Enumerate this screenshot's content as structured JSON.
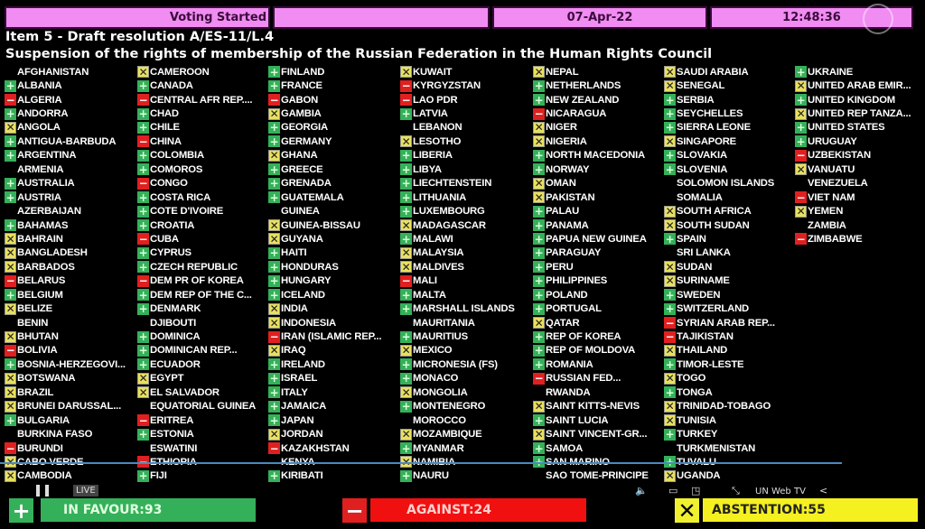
{
  "header": {
    "status": "Voting Started",
    "blank": "",
    "date": "07-Apr-22",
    "time": "12:48:36"
  },
  "item_title": "Item 5 - Draft resolution A/ES-11/L.4",
  "subtitle": "Suspension of the rights of membership of the Russian Federation in the Human Rights Council",
  "colors": {
    "yes": "#35b05a",
    "no": "#e02020",
    "abstain": "#e8e060",
    "header": "#f08cf2"
  },
  "columns": [
    [
      [
        "AFGHANISTAN",
        ""
      ],
      [
        "ALBANIA",
        "yes"
      ],
      [
        "ALGERIA",
        "no"
      ],
      [
        "ANDORRA",
        "yes"
      ],
      [
        "ANGOLA",
        "abstain"
      ],
      [
        "ANTIGUA-BARBUDA",
        "yes"
      ],
      [
        "ARGENTINA",
        "yes"
      ],
      [
        "ARMENIA",
        ""
      ],
      [
        "AUSTRALIA",
        "yes"
      ],
      [
        "AUSTRIA",
        "yes"
      ],
      [
        "AZERBAIJAN",
        ""
      ],
      [
        "BAHAMAS",
        "yes"
      ],
      [
        "BAHRAIN",
        "abstain"
      ],
      [
        "BANGLADESH",
        "abstain"
      ],
      [
        "BARBADOS",
        "abstain"
      ],
      [
        "BELARUS",
        "no"
      ],
      [
        "BELGIUM",
        "yes"
      ],
      [
        "BELIZE",
        "abstain"
      ],
      [
        "BENIN",
        ""
      ],
      [
        "BHUTAN",
        "abstain"
      ],
      [
        "BOLIVIA",
        "no"
      ],
      [
        "BOSNIA-HERZEGOVI...",
        "yes"
      ],
      [
        "BOTSWANA",
        "abstain"
      ],
      [
        "BRAZIL",
        "abstain"
      ],
      [
        "BRUNEI DARUSSAL...",
        "abstain"
      ],
      [
        "BULGARIA",
        "yes"
      ],
      [
        "BURKINA FASO",
        ""
      ],
      [
        "BURUNDI",
        "no"
      ],
      [
        "CABO VERDE",
        "abstain"
      ],
      [
        "CAMBODIA",
        "abstain"
      ]
    ],
    [
      [
        "CAMEROON",
        "abstain"
      ],
      [
        "CANADA",
        "yes"
      ],
      [
        "CENTRAL AFR REP....",
        "no"
      ],
      [
        "CHAD",
        "yes"
      ],
      [
        "CHILE",
        "yes"
      ],
      [
        "CHINA",
        "no"
      ],
      [
        "COLOMBIA",
        "yes"
      ],
      [
        "COMOROS",
        "yes"
      ],
      [
        "CONGO",
        "no"
      ],
      [
        "COSTA RICA",
        "yes"
      ],
      [
        "COTE D'IVOIRE",
        "yes"
      ],
      [
        "CROATIA",
        "yes"
      ],
      [
        "CUBA",
        "no"
      ],
      [
        "CYPRUS",
        "yes"
      ],
      [
        "CZECH REPUBLIC",
        "yes"
      ],
      [
        "DEM PR OF KOREA",
        "no"
      ],
      [
        "DEM REP OF THE C...",
        "yes"
      ],
      [
        "DENMARK",
        "yes"
      ],
      [
        "DJIBOUTI",
        ""
      ],
      [
        "DOMINICA",
        "yes"
      ],
      [
        "DOMINICAN REP...",
        "yes"
      ],
      [
        "ECUADOR",
        "yes"
      ],
      [
        "EGYPT",
        "abstain"
      ],
      [
        "EL SALVADOR",
        "abstain"
      ],
      [
        "EQUATORIAL GUINEA",
        ""
      ],
      [
        "ERITREA",
        "no"
      ],
      [
        "ESTONIA",
        "yes"
      ],
      [
        "ESWATINI",
        ""
      ],
      [
        "ETHIOPIA",
        "no"
      ],
      [
        "FIJI",
        "yes"
      ]
    ],
    [
      [
        "FINLAND",
        "yes"
      ],
      [
        "FRANCE",
        "yes"
      ],
      [
        "GABON",
        "no"
      ],
      [
        "GAMBIA",
        "abstain"
      ],
      [
        "GEORGIA",
        "yes"
      ],
      [
        "GERMANY",
        "yes"
      ],
      [
        "GHANA",
        "abstain"
      ],
      [
        "GREECE",
        "yes"
      ],
      [
        "GRENADA",
        "yes"
      ],
      [
        "GUATEMALA",
        "yes"
      ],
      [
        "GUINEA",
        ""
      ],
      [
        "GUINEA-BISSAU",
        "abstain"
      ],
      [
        "GUYANA",
        "abstain"
      ],
      [
        "HAITI",
        "yes"
      ],
      [
        "HONDURAS",
        "yes"
      ],
      [
        "HUNGARY",
        "yes"
      ],
      [
        "ICELAND",
        "yes"
      ],
      [
        "INDIA",
        "abstain"
      ],
      [
        "INDONESIA",
        "abstain"
      ],
      [
        "IRAN (ISLAMIC REP...",
        "no"
      ],
      [
        "IRAQ",
        "abstain"
      ],
      [
        "IRELAND",
        "yes"
      ],
      [
        "ISRAEL",
        "yes"
      ],
      [
        "ITALY",
        "yes"
      ],
      [
        "JAMAICA",
        "yes"
      ],
      [
        "JAPAN",
        "yes"
      ],
      [
        "JORDAN",
        "abstain"
      ],
      [
        "KAZAKHSTAN",
        "no"
      ],
      [
        "KENYA",
        ""
      ],
      [
        "KIRIBATI",
        "yes"
      ]
    ],
    [
      [
        "KUWAIT",
        "abstain"
      ],
      [
        "KYRGYZSTAN",
        "no"
      ],
      [
        "LAO PDR",
        "no"
      ],
      [
        "LATVIA",
        "yes"
      ],
      [
        "LEBANON",
        ""
      ],
      [
        "LESOTHO",
        "abstain"
      ],
      [
        "LIBERIA",
        "yes"
      ],
      [
        "LIBYA",
        "yes"
      ],
      [
        "LIECHTENSTEIN",
        "yes"
      ],
      [
        "LITHUANIA",
        "yes"
      ],
      [
        "LUXEMBOURG",
        "yes"
      ],
      [
        "MADAGASCAR",
        "abstain"
      ],
      [
        "MALAWI",
        "yes"
      ],
      [
        "MALAYSIA",
        "abstain"
      ],
      [
        "MALDIVES",
        "abstain"
      ],
      [
        "MALI",
        "no"
      ],
      [
        "MALTA",
        "yes"
      ],
      [
        "MARSHALL ISLANDS",
        "yes"
      ],
      [
        "MAURITANIA",
        ""
      ],
      [
        "MAURITIUS",
        "yes"
      ],
      [
        "MEXICO",
        "abstain"
      ],
      [
        "MICRONESIA (FS)",
        "yes"
      ],
      [
        "MONACO",
        "yes"
      ],
      [
        "MONGOLIA",
        "abstain"
      ],
      [
        "MONTENEGRO",
        "yes"
      ],
      [
        "MOROCCO",
        ""
      ],
      [
        "MOZAMBIQUE",
        "abstain"
      ],
      [
        "MYANMAR",
        "yes"
      ],
      [
        "NAMIBIA",
        "abstain"
      ],
      [
        "NAURU",
        "yes"
      ]
    ],
    [
      [
        "NEPAL",
        "abstain"
      ],
      [
        "NETHERLANDS",
        "yes"
      ],
      [
        "NEW ZEALAND",
        "yes"
      ],
      [
        "NICARAGUA",
        "no"
      ],
      [
        "NIGER",
        "abstain"
      ],
      [
        "NIGERIA",
        "abstain"
      ],
      [
        "NORTH MACEDONIA",
        "yes"
      ],
      [
        "NORWAY",
        "yes"
      ],
      [
        "OMAN",
        "abstain"
      ],
      [
        "PAKISTAN",
        "abstain"
      ],
      [
        "PALAU",
        "yes"
      ],
      [
        "PANAMA",
        "yes"
      ],
      [
        "PAPUA NEW GUINEA",
        "yes"
      ],
      [
        "PARAGUAY",
        "yes"
      ],
      [
        "PERU",
        "yes"
      ],
      [
        "PHILIPPINES",
        "yes"
      ],
      [
        "POLAND",
        "yes"
      ],
      [
        "PORTUGAL",
        "yes"
      ],
      [
        "QATAR",
        "abstain"
      ],
      [
        "REP OF KOREA",
        "yes"
      ],
      [
        "REP OF MOLDOVA",
        "yes"
      ],
      [
        "ROMANIA",
        "yes"
      ],
      [
        "RUSSIAN FED...",
        "no"
      ],
      [
        "RWANDA",
        ""
      ],
      [
        "SAINT KITTS-NEVIS",
        "abstain"
      ],
      [
        "SAINT LUCIA",
        "yes"
      ],
      [
        "SAINT VINCENT-GR...",
        "abstain"
      ],
      [
        "SAMOA",
        "yes"
      ],
      [
        "SAN MARINO",
        "yes"
      ],
      [
        "SAO TOME-PRINCIPE",
        ""
      ]
    ],
    [
      [
        "SAUDI ARABIA",
        "abstain"
      ],
      [
        "SENEGAL",
        "abstain"
      ],
      [
        "SERBIA",
        "yes"
      ],
      [
        "SEYCHELLES",
        "yes"
      ],
      [
        "SIERRA LEONE",
        "yes"
      ],
      [
        "SINGAPORE",
        "abstain"
      ],
      [
        "SLOVAKIA",
        "yes"
      ],
      [
        "SLOVENIA",
        "yes"
      ],
      [
        "SOLOMON ISLANDS",
        ""
      ],
      [
        "SOMALIA",
        ""
      ],
      [
        "SOUTH AFRICA",
        "abstain"
      ],
      [
        "SOUTH SUDAN",
        "abstain"
      ],
      [
        "SPAIN",
        "yes"
      ],
      [
        "SRI LANKA",
        ""
      ],
      [
        "SUDAN",
        "abstain"
      ],
      [
        "SURINAME",
        "abstain"
      ],
      [
        "SWEDEN",
        "yes"
      ],
      [
        "SWITZERLAND",
        "yes"
      ],
      [
        "SYRIAN ARAB REP...",
        "no"
      ],
      [
        "TAJIKISTAN",
        "no"
      ],
      [
        "THAILAND",
        "abstain"
      ],
      [
        "TIMOR-LESTE",
        "yes"
      ],
      [
        "TOGO",
        "abstain"
      ],
      [
        "TONGA",
        "yes"
      ],
      [
        "TRINIDAD-TOBAGO",
        "abstain"
      ],
      [
        "TUNISIA",
        "abstain"
      ],
      [
        "TURKEY",
        "yes"
      ],
      [
        "TURKMENISTAN",
        ""
      ],
      [
        "TUVALU",
        "yes"
      ],
      [
        "UGANDA",
        "abstain"
      ]
    ],
    [
      [
        "UKRAINE",
        "yes"
      ],
      [
        "UNITED ARAB EMIR...",
        "abstain"
      ],
      [
        "UNITED KINGDOM",
        "yes"
      ],
      [
        "UNITED REP TANZA...",
        "abstain"
      ],
      [
        "UNITED STATES",
        "yes"
      ],
      [
        "URUGUAY",
        "yes"
      ],
      [
        "UZBEKISTAN",
        "no"
      ],
      [
        "VANUATU",
        "abstain"
      ],
      [
        "VENEZUELA",
        ""
      ],
      [
        "VIET NAM",
        "no"
      ],
      [
        "YEMEN",
        "abstain"
      ],
      [
        "ZAMBIA",
        ""
      ],
      [
        "ZIMBABWE",
        "no"
      ]
    ]
  ],
  "totals": {
    "in_favour": "IN FAVOUR:93",
    "against": "AGAINST:24",
    "abstention": "ABSTENTION:55"
  },
  "player": {
    "live": "LIVE",
    "brand": "UN Web TV",
    "progress_percent": 91
  }
}
